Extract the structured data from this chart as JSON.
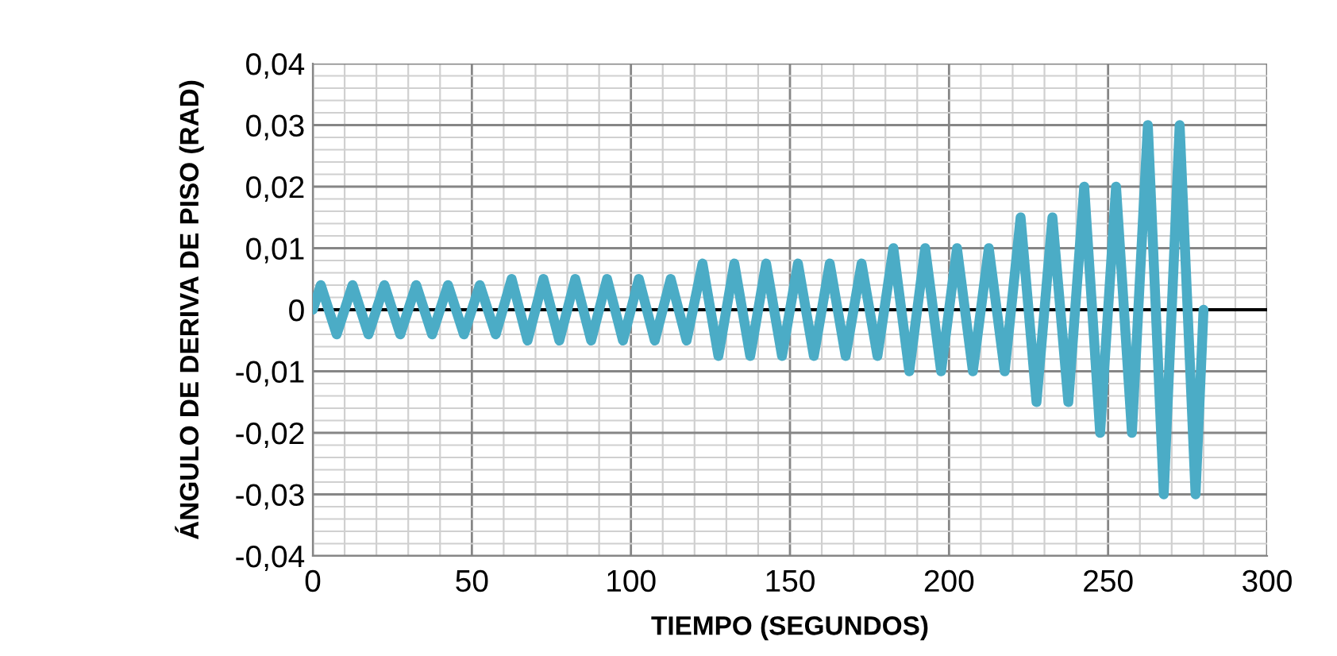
{
  "chart_data": {
    "type": "line",
    "xlabel": "TIEMPO (SEGUNDOS)",
    "ylabel": "ÁNGULO DE DERIVA DE PISO (RAD)",
    "xlim": [
      0,
      300
    ],
    "xticks": [
      0,
      50,
      100,
      150,
      200,
      250,
      300
    ],
    "ylim": [
      -0.04,
      0.04
    ],
    "yticks": [
      {
        "value": -0.04,
        "label": "-0,04"
      },
      {
        "value": -0.03,
        "label": "-0,03"
      },
      {
        "value": -0.02,
        "label": "-0,02"
      },
      {
        "value": -0.01,
        "label": "-0,01"
      },
      {
        "value": 0,
        "label": "0"
      },
      {
        "value": 0.01,
        "label": "0,01"
      },
      {
        "value": 0.02,
        "label": "0,02"
      },
      {
        "value": 0.03,
        "label": "0,03"
      },
      {
        "value": 0.04,
        "label": "0,04"
      }
    ],
    "ref_lines": [
      {
        "axis": "y",
        "value": 0,
        "color": "#000000"
      }
    ],
    "grid": true,
    "marker": "none",
    "line_style": "solid",
    "series": [
      {
        "color": "#4bacc6",
        "x": [
          0,
          2.5,
          7.5,
          12.5,
          17.5,
          22.5,
          27.5,
          32.5,
          37.5,
          42.5,
          47.5,
          52.5,
          57.5,
          62.5,
          67.5,
          72.5,
          77.5,
          82.5,
          87.5,
          92.5,
          97.5,
          102.5,
          107.5,
          112.5,
          117.5,
          122.5,
          127.5,
          132.5,
          137.5,
          142.5,
          147.5,
          152.5,
          157.5,
          162.5,
          167.5,
          172.5,
          177.5,
          182.5,
          187.5,
          192.5,
          197.5,
          202.5,
          207.5,
          212.5,
          217.5,
          222.5,
          227.5,
          232.5,
          237.5,
          242.5,
          247.5,
          252.5,
          257.5,
          262.5,
          267.5,
          272.5,
          277.5,
          280
        ],
        "values": [
          0,
          0.004,
          -0.004,
          0.004,
          -0.004,
          0.004,
          -0.004,
          0.004,
          -0.004,
          0.004,
          -0.004,
          0.004,
          -0.004,
          0.005,
          -0.005,
          0.005,
          -0.005,
          0.005,
          -0.005,
          0.005,
          -0.005,
          0.005,
          -0.005,
          0.005,
          -0.005,
          0.0075,
          -0.0075,
          0.0075,
          -0.0075,
          0.0075,
          -0.0075,
          0.0075,
          -0.0075,
          0.0075,
          -0.0075,
          0.0075,
          -0.0075,
          0.01,
          -0.01,
          0.01,
          -0.01,
          0.01,
          -0.01,
          0.01,
          -0.01,
          0.015,
          -0.015,
          0.015,
          -0.015,
          0.02,
          -0.02,
          0.02,
          -0.02,
          0.03,
          -0.03,
          0.03,
          -0.03,
          0
        ]
      }
    ]
  }
}
